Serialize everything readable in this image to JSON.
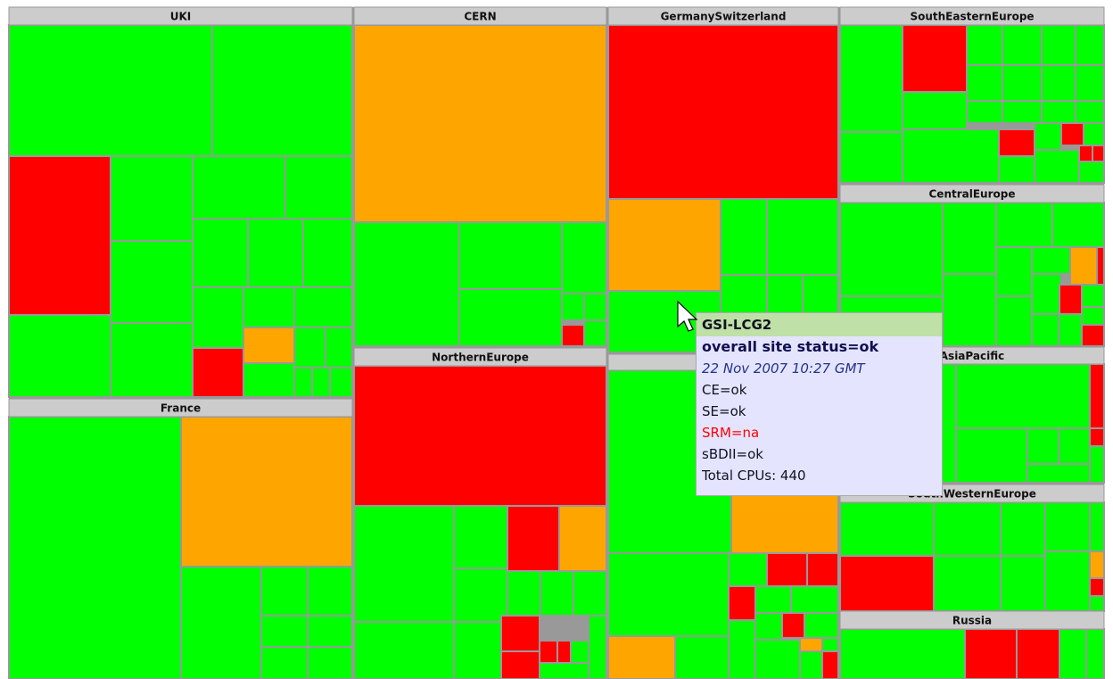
{
  "regions": [
    {
      "label": "UKI"
    },
    {
      "label": "France"
    },
    {
      "label": "CERN"
    },
    {
      "label": "NorthernEurope"
    },
    {
      "label": "GermanySwitzerland"
    },
    {
      "label": "SouthEasternEurope"
    },
    {
      "label": "CentralEurope"
    },
    {
      "label": "AsiaPacific"
    },
    {
      "label": "SouthWesternEurope"
    },
    {
      "label": "Russia"
    }
  ],
  "tooltip": {
    "title": "GSI-LCG2",
    "status": "overall site status=ok",
    "time": "22 Nov 2007 10:27 GMT",
    "ce": "CE=ok",
    "se": "SE=ok",
    "srm": "SRM=na",
    "sbdii": "sBDII=ok",
    "cpus": "Total CPUs: 440"
  }
}
